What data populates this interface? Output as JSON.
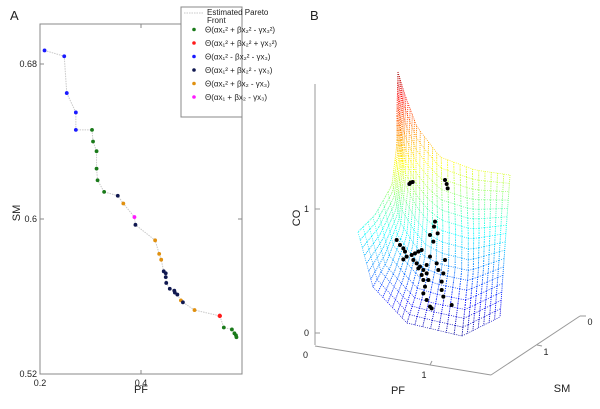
{
  "chart_data": [
    {
      "panel": "A",
      "type": "scatter",
      "title": "",
      "xlabel": "PF",
      "ylabel": "SM",
      "xlim": [
        0.2,
        0.6
      ],
      "ylim": [
        0.52,
        0.7
      ],
      "xticks": [
        "0.2",
        "0.4"
      ],
      "yticks": [
        "0.52",
        "0.6",
        "0.68"
      ],
      "grid": false,
      "legend_position": "top-right",
      "legend": [
        {
          "label": "Estimated Pareto Front",
          "color": "#c8c8c8",
          "kind": "line"
        },
        {
          "label": "Θ(αx₁² + βx₂² - γx₃²)",
          "color": "#1a7a1a",
          "kind": "marker"
        },
        {
          "label": "Θ(αx₁² + βx₂² + γx₃²)",
          "color": "#ff1a1a",
          "kind": "marker"
        },
        {
          "label": "Θ(αx₁² - βx₂² - γx₃)",
          "color": "#1a1aff",
          "kind": "marker"
        },
        {
          "label": "Θ(αx₁² + βx₂² - γx₃)",
          "color": "#101850",
          "kind": "marker"
        },
        {
          "label": "Θ(αx₁² + βx₂ - γx₃)",
          "color": "#e0900f",
          "kind": "marker"
        },
        {
          "label": "Θ(αx₁ + βx₂ - γx₃)",
          "color": "#ff1aff",
          "kind": "marker"
        }
      ],
      "points": [
        {
          "x": 0.209,
          "y": 0.687,
          "s": 2
        },
        {
          "x": 0.248,
          "y": 0.684,
          "s": 2
        },
        {
          "x": 0.253,
          "y": 0.665,
          "s": 2
        },
        {
          "x": 0.271,
          "y": 0.655,
          "s": 2
        },
        {
          "x": 0.271,
          "y": 0.646,
          "s": 2
        },
        {
          "x": 0.303,
          "y": 0.646,
          "s": 0
        },
        {
          "x": 0.305,
          "y": 0.64,
          "s": 0
        },
        {
          "x": 0.312,
          "y": 0.635,
          "s": 0
        },
        {
          "x": 0.312,
          "y": 0.626,
          "s": 0
        },
        {
          "x": 0.314,
          "y": 0.62,
          "s": 0
        },
        {
          "x": 0.327,
          "y": 0.614,
          "s": 0
        },
        {
          "x": 0.354,
          "y": 0.612,
          "s": 3
        },
        {
          "x": 0.365,
          "y": 0.608,
          "s": 4
        },
        {
          "x": 0.387,
          "y": 0.601,
          "s": 5
        },
        {
          "x": 0.389,
          "y": 0.597,
          "s": 3
        },
        {
          "x": 0.428,
          "y": 0.589,
          "s": 4
        },
        {
          "x": 0.436,
          "y": 0.582,
          "s": 4
        },
        {
          "x": 0.44,
          "y": 0.579,
          "s": 4
        },
        {
          "x": 0.445,
          "y": 0.573,
          "s": 3
        },
        {
          "x": 0.449,
          "y": 0.572,
          "s": 3
        },
        {
          "x": 0.449,
          "y": 0.57,
          "s": 3
        },
        {
          "x": 0.45,
          "y": 0.567,
          "s": 3
        },
        {
          "x": 0.457,
          "y": 0.564,
          "s": 3
        },
        {
          "x": 0.466,
          "y": 0.563,
          "s": 3
        },
        {
          "x": 0.467,
          "y": 0.562,
          "s": 3
        },
        {
          "x": 0.472,
          "y": 0.561,
          "s": 3
        },
        {
          "x": 0.479,
          "y": 0.558,
          "s": 4
        },
        {
          "x": 0.483,
          "y": 0.557,
          "s": 3
        },
        {
          "x": 0.506,
          "y": 0.553,
          "s": 4
        },
        {
          "x": 0.556,
          "y": 0.55,
          "s": 1
        },
        {
          "x": 0.564,
          "y": 0.544,
          "s": 0
        },
        {
          "x": 0.58,
          "y": 0.543,
          "s": 0
        },
        {
          "x": 0.585,
          "y": 0.541,
          "s": 0
        },
        {
          "x": 0.588,
          "y": 0.54,
          "s": 0
        },
        {
          "x": 0.589,
          "y": 0.539,
          "s": 0
        }
      ]
    },
    {
      "panel": "B",
      "type": "scatter",
      "title": "",
      "xlabel": "PF",
      "ylabel": "SM",
      "zlabel": "CO",
      "xticks": [
        "0",
        "1"
      ],
      "yticks": [
        "0",
        "1"
      ],
      "zticks": [
        "0",
        "1"
      ],
      "colormap": "jet",
      "marker_color": "#000000"
    }
  ]
}
